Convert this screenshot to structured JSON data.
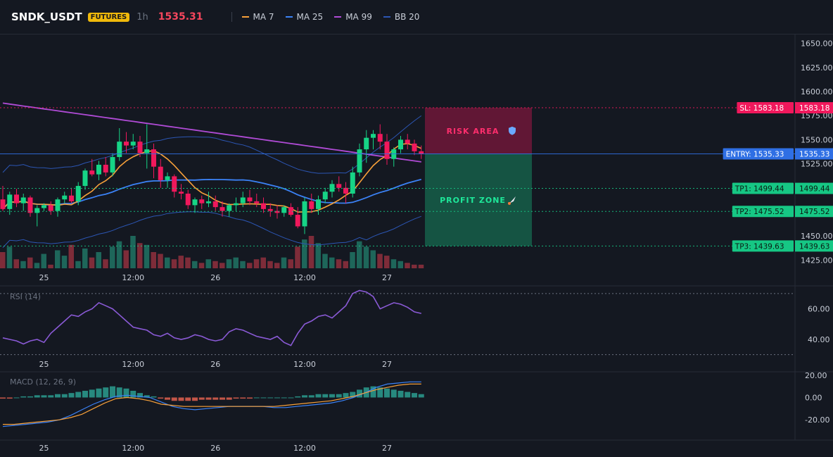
{
  "header": {
    "symbol": "SNDK_USDT",
    "badge": "FUTURES",
    "timeframe": "1h",
    "last_price": "1535.31",
    "legend": [
      {
        "label": "MA 7",
        "color": "#f7a03a"
      },
      {
        "label": "MA 25",
        "color": "#3b82f6"
      },
      {
        "label": "MA 99",
        "color": "#b04bd6"
      },
      {
        "label": "BB 20",
        "color": "#2c56b4"
      }
    ]
  },
  "chart_data": [
    {
      "type": "candlestick",
      "title": "",
      "price_axis_ticks": [
        "1650.00",
        "1625.00",
        "1600.00",
        "1575.00",
        "1550.00",
        "1525.00",
        "1450.00",
        "1425.00"
      ],
      "time_axis_ticks": [
        "25",
        "12:00",
        "26",
        "12:00",
        "27"
      ],
      "ylim": [
        1415,
        1660
      ],
      "levels": [
        {
          "name": "SL",
          "label": "SL: 1583.18",
          "axis_label": "1583.18",
          "value": 1583.18,
          "color": "#f0185c"
        },
        {
          "name": "ENTRY",
          "label": "ENTRY: 1535.33",
          "axis_label": "1535.33",
          "value": 1535.33,
          "color": "#2f6fe4"
        },
        {
          "name": "TP1",
          "label": "TP1: 1499.44",
          "axis_label": "1499.44",
          "value": 1499.44,
          "color": "#16c784"
        },
        {
          "name": "TP2",
          "label": "TP2: 1475.52",
          "axis_label": "1475.52",
          "value": 1475.52,
          "color": "#16c784"
        },
        {
          "name": "TP3",
          "label": "TP3: 1439.63",
          "axis_label": "1439.63",
          "value": 1439.63,
          "color": "#16c784"
        }
      ],
      "zones": [
        {
          "label": "RISK AREA",
          "icon": "shield-icon",
          "from": 1535.33,
          "to": 1583.18,
          "color": "#f0185c"
        },
        {
          "label": "PROFIT ZONE",
          "icon": "rocket-icon",
          "from": 1439.63,
          "to": 1535.33,
          "color": "#16c784"
        }
      ],
      "candles": [
        [
          1488,
          1502,
          1476,
          1478
        ],
        [
          1478,
          1496,
          1472,
          1493
        ],
        [
          1493,
          1499,
          1480,
          1484
        ],
        [
          1484,
          1494,
          1476,
          1490
        ],
        [
          1490,
          1492,
          1470,
          1474
        ],
        [
          1474,
          1482,
          1460,
          1479
        ],
        [
          1479,
          1484,
          1476,
          1482
        ],
        [
          1482,
          1486,
          1472,
          1476
        ],
        [
          1476,
          1490,
          1470,
          1488
        ],
        [
          1488,
          1496,
          1484,
          1492
        ],
        [
          1492,
          1500,
          1484,
          1486
        ],
        [
          1486,
          1506,
          1482,
          1502
        ],
        [
          1502,
          1520,
          1498,
          1518
        ],
        [
          1518,
          1530,
          1512,
          1514
        ],
        [
          1514,
          1528,
          1508,
          1524
        ],
        [
          1524,
          1532,
          1512,
          1516
        ],
        [
          1516,
          1536,
          1512,
          1532
        ],
        [
          1532,
          1562,
          1528,
          1548
        ],
        [
          1548,
          1558,
          1536,
          1544
        ],
        [
          1544,
          1556,
          1540,
          1548
        ],
        [
          1548,
          1554,
          1532,
          1536
        ],
        [
          1536,
          1566,
          1520,
          1540
        ],
        [
          1540,
          1546,
          1510,
          1522
        ],
        [
          1522,
          1530,
          1500,
          1508
        ],
        [
          1508,
          1516,
          1500,
          1512
        ],
        [
          1512,
          1514,
          1490,
          1496
        ],
        [
          1496,
          1504,
          1488,
          1494
        ],
        [
          1494,
          1498,
          1478,
          1482
        ],
        [
          1482,
          1490,
          1474,
          1488
        ],
        [
          1488,
          1492,
          1478,
          1484
        ],
        [
          1484,
          1496,
          1480,
          1486
        ],
        [
          1486,
          1492,
          1476,
          1480
        ],
        [
          1480,
          1486,
          1470,
          1476
        ],
        [
          1476,
          1484,
          1470,
          1482
        ],
        [
          1482,
          1490,
          1476,
          1484
        ],
        [
          1484,
          1496,
          1480,
          1490
        ],
        [
          1490,
          1498,
          1482,
          1486
        ],
        [
          1486,
          1494,
          1480,
          1484
        ],
        [
          1484,
          1490,
          1474,
          1478
        ],
        [
          1478,
          1484,
          1470,
          1476
        ],
        [
          1476,
          1482,
          1468,
          1474
        ],
        [
          1474,
          1482,
          1470,
          1480
        ],
        [
          1480,
          1484,
          1470,
          1472
        ],
        [
          1472,
          1480,
          1458,
          1460
        ],
        [
          1460,
          1490,
          1452,
          1486
        ],
        [
          1486,
          1494,
          1474,
          1478
        ],
        [
          1478,
          1492,
          1472,
          1488
        ],
        [
          1488,
          1500,
          1484,
          1496
        ],
        [
          1496,
          1508,
          1490,
          1504
        ],
        [
          1504,
          1512,
          1496,
          1500
        ],
        [
          1500,
          1506,
          1484,
          1494
        ],
        [
          1494,
          1522,
          1490,
          1516
        ],
        [
          1516,
          1546,
          1512,
          1540
        ],
        [
          1540,
          1560,
          1526,
          1552
        ],
        [
          1552,
          1560,
          1540,
          1556
        ],
        [
          1556,
          1566,
          1540,
          1548
        ],
        [
          1548,
          1556,
          1524,
          1530
        ],
        [
          1530,
          1542,
          1522,
          1540
        ],
        [
          1540,
          1554,
          1536,
          1550
        ],
        [
          1550,
          1556,
          1540,
          1546
        ],
        [
          1546,
          1550,
          1534,
          1538
        ],
        [
          1538,
          1544,
          1530,
          1535
        ]
      ],
      "volume": [
        9,
        12,
        5,
        4,
        6,
        3,
        8,
        2,
        10,
        7,
        13,
        4,
        11,
        6,
        9,
        5,
        12,
        15,
        10,
        18,
        14,
        13,
        9,
        8,
        6,
        5,
        7,
        6,
        4,
        3,
        5,
        4,
        3,
        5,
        6,
        4,
        3,
        5,
        6,
        4,
        3,
        6,
        5,
        12,
        16,
        18,
        14,
        8,
        6,
        5,
        4,
        9,
        15,
        12,
        10,
        8,
        7,
        5,
        4,
        3,
        2,
        2
      ]
    },
    {
      "type": "line",
      "title": "RSI (14)",
      "axis_ticks": [
        "60.00",
        "40.00"
      ],
      "time_axis_ticks": [
        "25",
        "12:00",
        "26",
        "12:00",
        "27"
      ],
      "ylim": [
        28,
        75
      ],
      "values": [
        41,
        40,
        39,
        37,
        39,
        40,
        38,
        44,
        48,
        52,
        56,
        55,
        58,
        60,
        64,
        62,
        60,
        56,
        52,
        48,
        47,
        46,
        43,
        42,
        44,
        41,
        40,
        41,
        43,
        42,
        40,
        39,
        40,
        45,
        47,
        46,
        44,
        42,
        41,
        40,
        42,
        38,
        36,
        44,
        50,
        52,
        55,
        56,
        54,
        58,
        62,
        70,
        72,
        71,
        68,
        60,
        62,
        64,
        63,
        61,
        58,
        57
      ]
    },
    {
      "type": "bar",
      "title": "MACD (12, 26, 9)",
      "axis_ticks": [
        "20.00",
        "0.00",
        "-20.00"
      ],
      "time_axis_ticks": [
        "25",
        "12:00",
        "26",
        "12:00",
        "27"
      ],
      "ylim": [
        -35,
        23
      ],
      "histogram": [
        -1,
        -1,
        0,
        1,
        1,
        2,
        2,
        2,
        3,
        3,
        4,
        5,
        6,
        7,
        8,
        9,
        10,
        9,
        8,
        6,
        4,
        2,
        1,
        -1,
        -2,
        -3,
        -3,
        -3,
        -3,
        -2,
        -2,
        -2,
        -2,
        -2,
        -1,
        -1,
        -1,
        0,
        0,
        0,
        0,
        0,
        0,
        1,
        2,
        2,
        3,
        3,
        3,
        3,
        4,
        5,
        7,
        9,
        10,
        9,
        8,
        7,
        6,
        5,
        4,
        3
      ],
      "macd": [
        -26,
        -25,
        -24,
        -23,
        -22,
        -20,
        -16,
        -11,
        -6,
        -2,
        1,
        2,
        1,
        0,
        -4,
        -8,
        -10,
        -11,
        -10,
        -9,
        -8,
        -8,
        -8,
        -8,
        -9,
        -9,
        -8,
        -7,
        -6,
        -5,
        -3,
        0,
        4,
        9,
        12,
        13,
        14,
        14
      ],
      "signal": [
        -24,
        -24,
        -23,
        -22,
        -21,
        -20,
        -18,
        -15,
        -10,
        -5,
        -1,
        0,
        -1,
        -3,
        -6,
        -7,
        -8,
        -8,
        -8,
        -8,
        -8,
        -8,
        -8,
        -8,
        -8,
        -7,
        -6,
        -5,
        -4,
        -3,
        -1,
        1,
        4,
        7,
        9,
        11,
        12,
        12
      ]
    }
  ]
}
